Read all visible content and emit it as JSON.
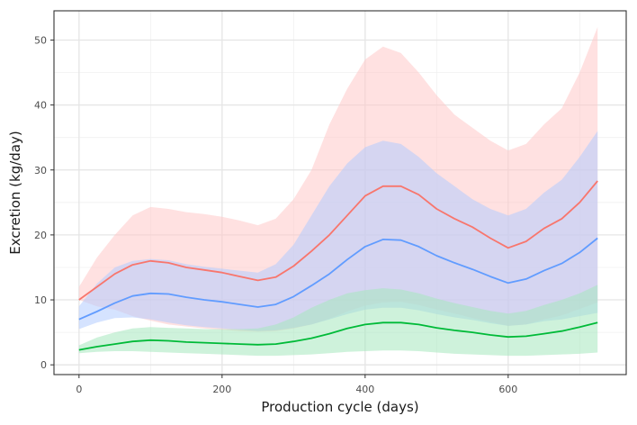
{
  "chart_data": {
    "type": "area",
    "title": "",
    "xlabel": "Production cycle (days)",
    "ylabel": "Excretion (kg/day)",
    "xlim": [
      -35,
      765
    ],
    "ylim": [
      -1.5,
      54.5
    ],
    "x_ticks": [
      0,
      200,
      400,
      600
    ],
    "y_ticks": [
      0,
      10,
      20,
      30,
      40,
      50
    ],
    "x_tick_labels": [
      "0",
      "200",
      "400",
      "600"
    ],
    "y_tick_labels": [
      "0",
      "10",
      "20",
      "30",
      "40",
      "50"
    ],
    "grid": true,
    "legend": "none",
    "x": [
      0,
      25,
      50,
      75,
      100,
      125,
      150,
      175,
      200,
      225,
      250,
      275,
      300,
      325,
      350,
      375,
      400,
      425,
      450,
      475,
      500,
      525,
      550,
      575,
      600,
      625,
      650,
      675,
      700,
      725
    ],
    "series": [
      {
        "color": "#F8766D",
        "fill": "#ffc9c9",
        "values": [
          10.0,
          12.0,
          14.0,
          15.4,
          16.0,
          15.7,
          15.0,
          14.6,
          14.2,
          13.6,
          13.0,
          13.5,
          15.2,
          17.5,
          20.0,
          23.0,
          26.0,
          27.5,
          27.5,
          26.2,
          24.0,
          22.5,
          21.2,
          19.5,
          18.0,
          19.0,
          21.0,
          22.5,
          25.0,
          28.3
        ],
        "lower": [
          10.0,
          9.0,
          8.5,
          7.5,
          6.8,
          6.2,
          5.9,
          5.6,
          5.4,
          5.2,
          5.1,
          5.2,
          5.6,
          6.2,
          7.1,
          8.2,
          9.1,
          9.6,
          9.7,
          9.2,
          8.5,
          7.9,
          7.2,
          6.6,
          6.0,
          6.2,
          7.0,
          7.6,
          8.6,
          9.6
        ],
        "upper": [
          12.0,
          16.5,
          20.0,
          23.0,
          24.3,
          24.0,
          23.5,
          23.2,
          22.8,
          22.2,
          21.5,
          22.5,
          25.5,
          30.0,
          37.0,
          42.5,
          47.0,
          49.0,
          48.0,
          45.0,
          41.5,
          38.5,
          36.5,
          34.5,
          33.0,
          34.0,
          37.0,
          39.5,
          45.0,
          52.0
        ]
      },
      {
        "color": "#619CFF",
        "fill": "#b3ccff",
        "values": [
          7.0,
          8.2,
          9.5,
          10.6,
          11.0,
          10.9,
          10.4,
          10.0,
          9.7,
          9.3,
          8.9,
          9.3,
          10.5,
          12.2,
          14.0,
          16.2,
          18.2,
          19.3,
          19.2,
          18.2,
          16.8,
          15.7,
          14.7,
          13.6,
          12.6,
          13.2,
          14.5,
          15.6,
          17.3,
          19.5
        ],
        "lower": [
          5.5,
          6.5,
          7.2,
          7.3,
          7.0,
          6.5,
          6.1,
          5.8,
          5.6,
          5.4,
          5.2,
          5.3,
          5.7,
          6.2,
          7.0,
          7.8,
          8.5,
          8.8,
          8.8,
          8.4,
          7.8,
          7.3,
          6.9,
          6.4,
          6.0,
          6.2,
          6.7,
          7.0,
          7.5,
          8.0
        ],
        "upper": [
          9.0,
          12.5,
          15.0,
          16.0,
          16.3,
          16.1,
          15.5,
          15.1,
          14.8,
          14.5,
          14.2,
          15.5,
          18.5,
          23.0,
          27.5,
          31.0,
          33.5,
          34.5,
          34.0,
          32.0,
          29.5,
          27.5,
          25.5,
          24.0,
          23.0,
          24.0,
          26.5,
          28.5,
          32.0,
          36.0
        ]
      },
      {
        "color": "#00BA38",
        "fill": "#a6e8bd",
        "values": [
          2.3,
          2.8,
          3.2,
          3.6,
          3.8,
          3.7,
          3.5,
          3.4,
          3.3,
          3.2,
          3.1,
          3.2,
          3.6,
          4.1,
          4.8,
          5.6,
          6.2,
          6.5,
          6.5,
          6.2,
          5.7,
          5.3,
          5.0,
          4.6,
          4.3,
          4.4,
          4.8,
          5.2,
          5.8,
          6.5
        ],
        "lower": [
          1.8,
          2.0,
          2.1,
          2.1,
          2.0,
          1.9,
          1.8,
          1.7,
          1.6,
          1.5,
          1.4,
          1.4,
          1.5,
          1.6,
          1.8,
          2.0,
          2.1,
          2.2,
          2.2,
          2.1,
          1.9,
          1.7,
          1.6,
          1.5,
          1.4,
          1.4,
          1.5,
          1.6,
          1.7,
          1.9
        ],
        "upper": [
          3.0,
          4.2,
          5.0,
          5.6,
          5.8,
          5.7,
          5.6,
          5.5,
          5.5,
          5.5,
          5.6,
          6.2,
          7.3,
          8.8,
          10.0,
          11.0,
          11.5,
          11.8,
          11.6,
          11.0,
          10.2,
          9.5,
          8.9,
          8.3,
          7.9,
          8.3,
          9.2,
          10.0,
          11.0,
          12.3
        ]
      }
    ]
  }
}
